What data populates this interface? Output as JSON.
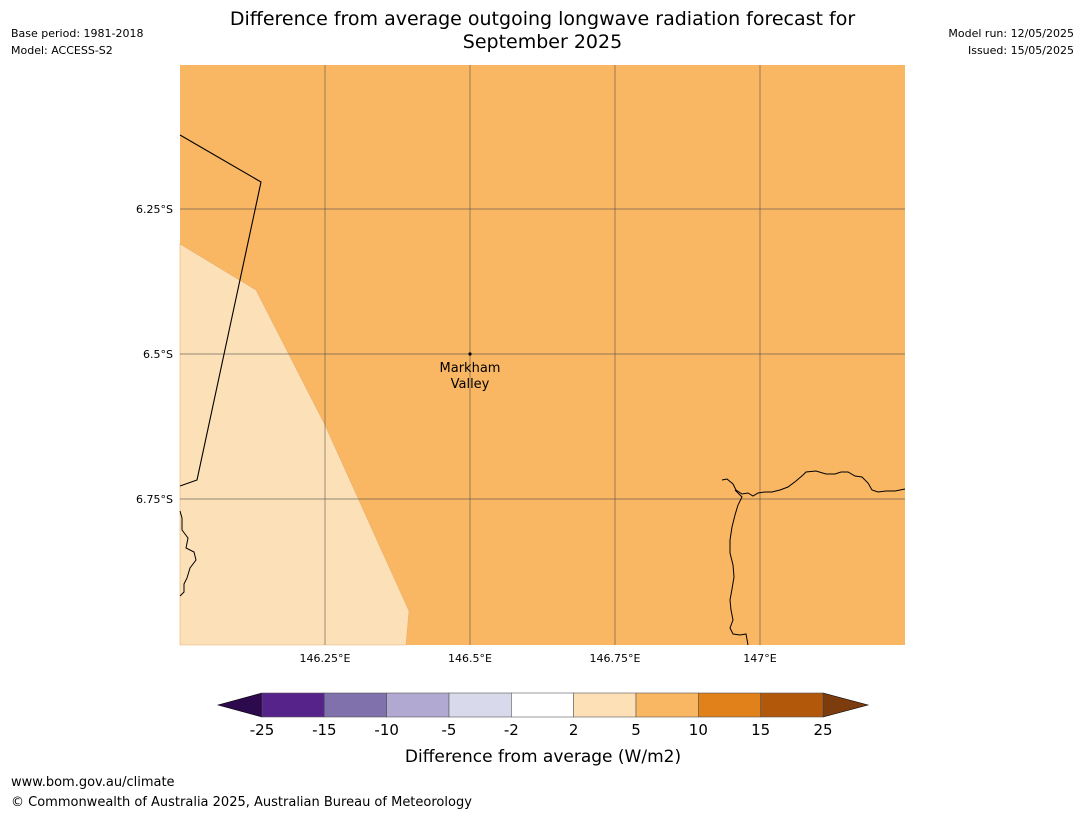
{
  "title_line1": "Difference from average outgoing longwave radiation forecast for",
  "title_line2": "September 2025",
  "meta_left": {
    "base_period": "Base period: 1981-2018",
    "model": "Model: ACCESS-S2"
  },
  "meta_right": {
    "model_run": "Model run: 12/05/2025",
    "issued": "Issued: 15/05/2025"
  },
  "map": {
    "lat_ticks": [
      "6.25°S",
      "6.5°S",
      "6.75°S"
    ],
    "lon_ticks": [
      "146.25°E",
      "146.5°E",
      "146.75°E",
      "147°E"
    ],
    "place": {
      "line1": "Markham",
      "line2": "Valley"
    },
    "base_color": "#f9b663",
    "low_region_color": "#fce0b7",
    "regions": [
      {
        "category": "5 to 10",
        "color": "#f9b663"
      },
      {
        "category": "2 to 5",
        "color": "#fce0b7"
      }
    ]
  },
  "colorbar": {
    "ticks": [
      "-25",
      "-15",
      "-10",
      "-5",
      "-2",
      "2",
      "5",
      "10",
      "15",
      "25"
    ],
    "colors": [
      "#56238a",
      "#8071ad",
      "#b1a9d1",
      "#d9d9ec",
      "#ffffff",
      "#fde0b5",
      "#f9b663",
      "#e08219",
      "#b2580b"
    ],
    "low_extend_color": "#2d0a4e",
    "high_extend_color": "#7d3c0e",
    "label": "Difference from average (W/m2)"
  },
  "footer": {
    "url": "www.bom.gov.au/climate",
    "copyright": "© Commonwealth of Australia 2025, Australian Bureau of Meteorology"
  }
}
